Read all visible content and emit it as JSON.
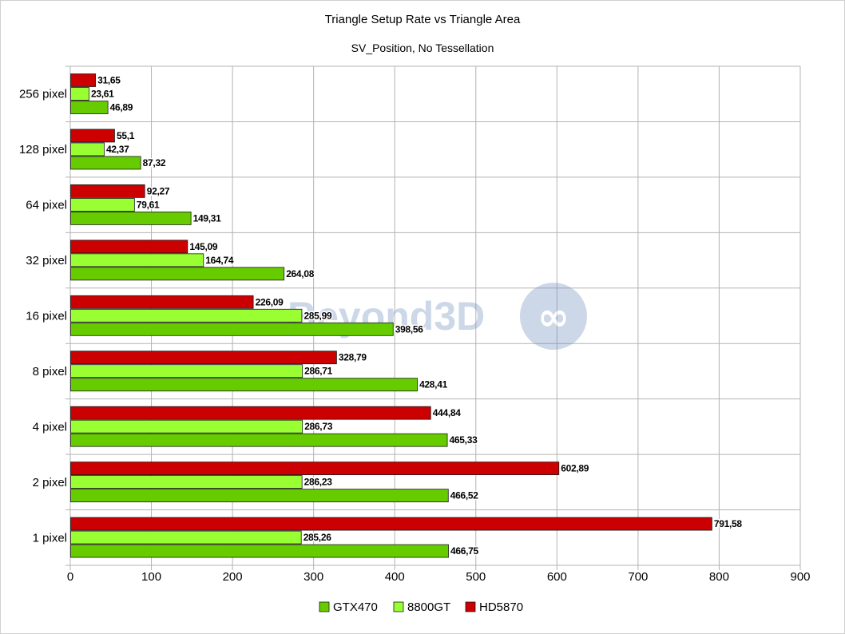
{
  "chart_data": {
    "type": "bar",
    "orientation": "horizontal",
    "title": "Triangle Setup Rate vs Triangle Area",
    "subtitle": "SV_Position, No Tessellation",
    "xlabel": "",
    "ylabel": "",
    "xlim": [
      0,
      900
    ],
    "xticks": [
      "0",
      "100",
      "200",
      "300",
      "400",
      "500",
      "600",
      "700",
      "800",
      "900"
    ],
    "grid": true,
    "legend_position": "bottom",
    "categories": [
      "256 pixel",
      "128 pixel",
      "64 pixel",
      "32 pixel",
      "16 pixel",
      "8 pixel",
      "4 pixel",
      "2 pixel",
      "1 pixel"
    ],
    "series": [
      {
        "name": "HD5870",
        "color": "#cc0000",
        "values": [
          31.65,
          55.1,
          92.27,
          145.09,
          226.09,
          328.79,
          444.84,
          602.89,
          791.58
        ],
        "labels": [
          "31,65",
          "55,1",
          "92,27",
          "145,09",
          "226,09",
          "328,79",
          "444,84",
          "602,89",
          "791,58"
        ]
      },
      {
        "name": "8800GT",
        "color": "#99ff33",
        "values": [
          23.61,
          42.37,
          79.61,
          164.74,
          285.99,
          286.71,
          286.73,
          286.23,
          285.26
        ],
        "labels": [
          "23,61",
          "42,37",
          "79,61",
          "164,74",
          "285,99",
          "286,71",
          "286,73",
          "286,23",
          "285,26"
        ]
      },
      {
        "name": "GTX470",
        "color": "#66cc00",
        "values": [
          46.89,
          87.32,
          149.31,
          264.08,
          398.56,
          428.41,
          465.33,
          466.52,
          466.75
        ],
        "labels": [
          "46,89",
          "87,32",
          "149,31",
          "264,08",
          "398,56",
          "428,41",
          "465,33",
          "466,52",
          "466,75"
        ]
      }
    ],
    "legend_order": [
      "GTX470",
      "8800GT",
      "HD5870"
    ],
    "watermark": "Beyond3D"
  }
}
